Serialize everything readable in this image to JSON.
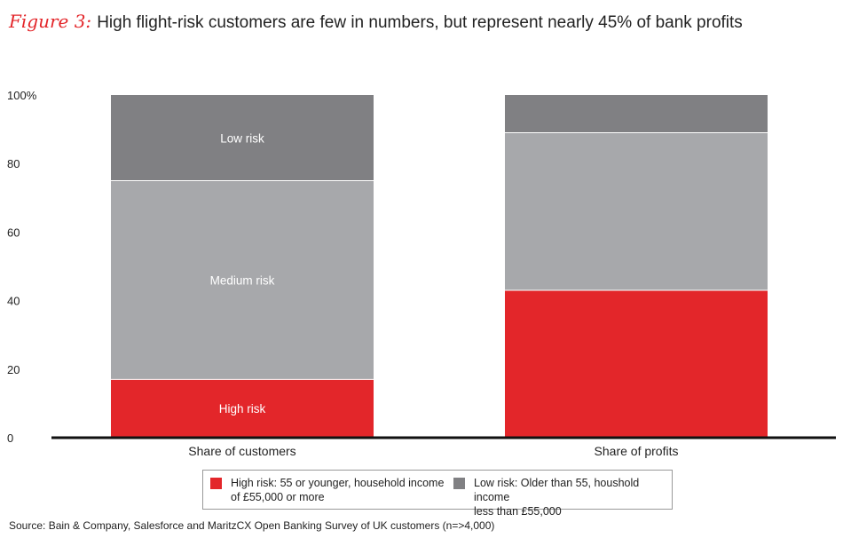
{
  "figure": {
    "label": "Figure 3:",
    "title": "High flight-risk customers are few in numbers, but represent nearly 45% of bank profits"
  },
  "chart_data": {
    "type": "bar",
    "stacked": true,
    "categories": [
      "Share of customers",
      "Share of profits"
    ],
    "series": [
      {
        "name": "High risk",
        "values": [
          17,
          43
        ],
        "color": "#e3262a"
      },
      {
        "name": "Medium risk",
        "values": [
          58,
          46
        ],
        "color": "#a7a8ab"
      },
      {
        "name": "Low risk",
        "values": [
          25,
          11
        ],
        "color": "#808083"
      }
    ],
    "segment_labels": {
      "Share of customers": [
        "High risk",
        "Medium risk",
        "Low risk"
      ]
    },
    "y_ticks": [
      "0",
      "20",
      "40",
      "60",
      "80",
      "100%"
    ],
    "ylim": [
      0,
      100
    ],
    "grid": false
  },
  "legend": {
    "items": [
      {
        "text": "High risk: 55 or younger, household income\n of £55,000 or more",
        "color": "#e3262a"
      },
      {
        "text": "Low risk: Older than 55, houshold income\nless than £55,000",
        "color": "#808083"
      }
    ]
  },
  "source": "Source: Bain & Company, Salesforce and MaritzCX Open Banking Survey of UK customers (n=>4,000)"
}
